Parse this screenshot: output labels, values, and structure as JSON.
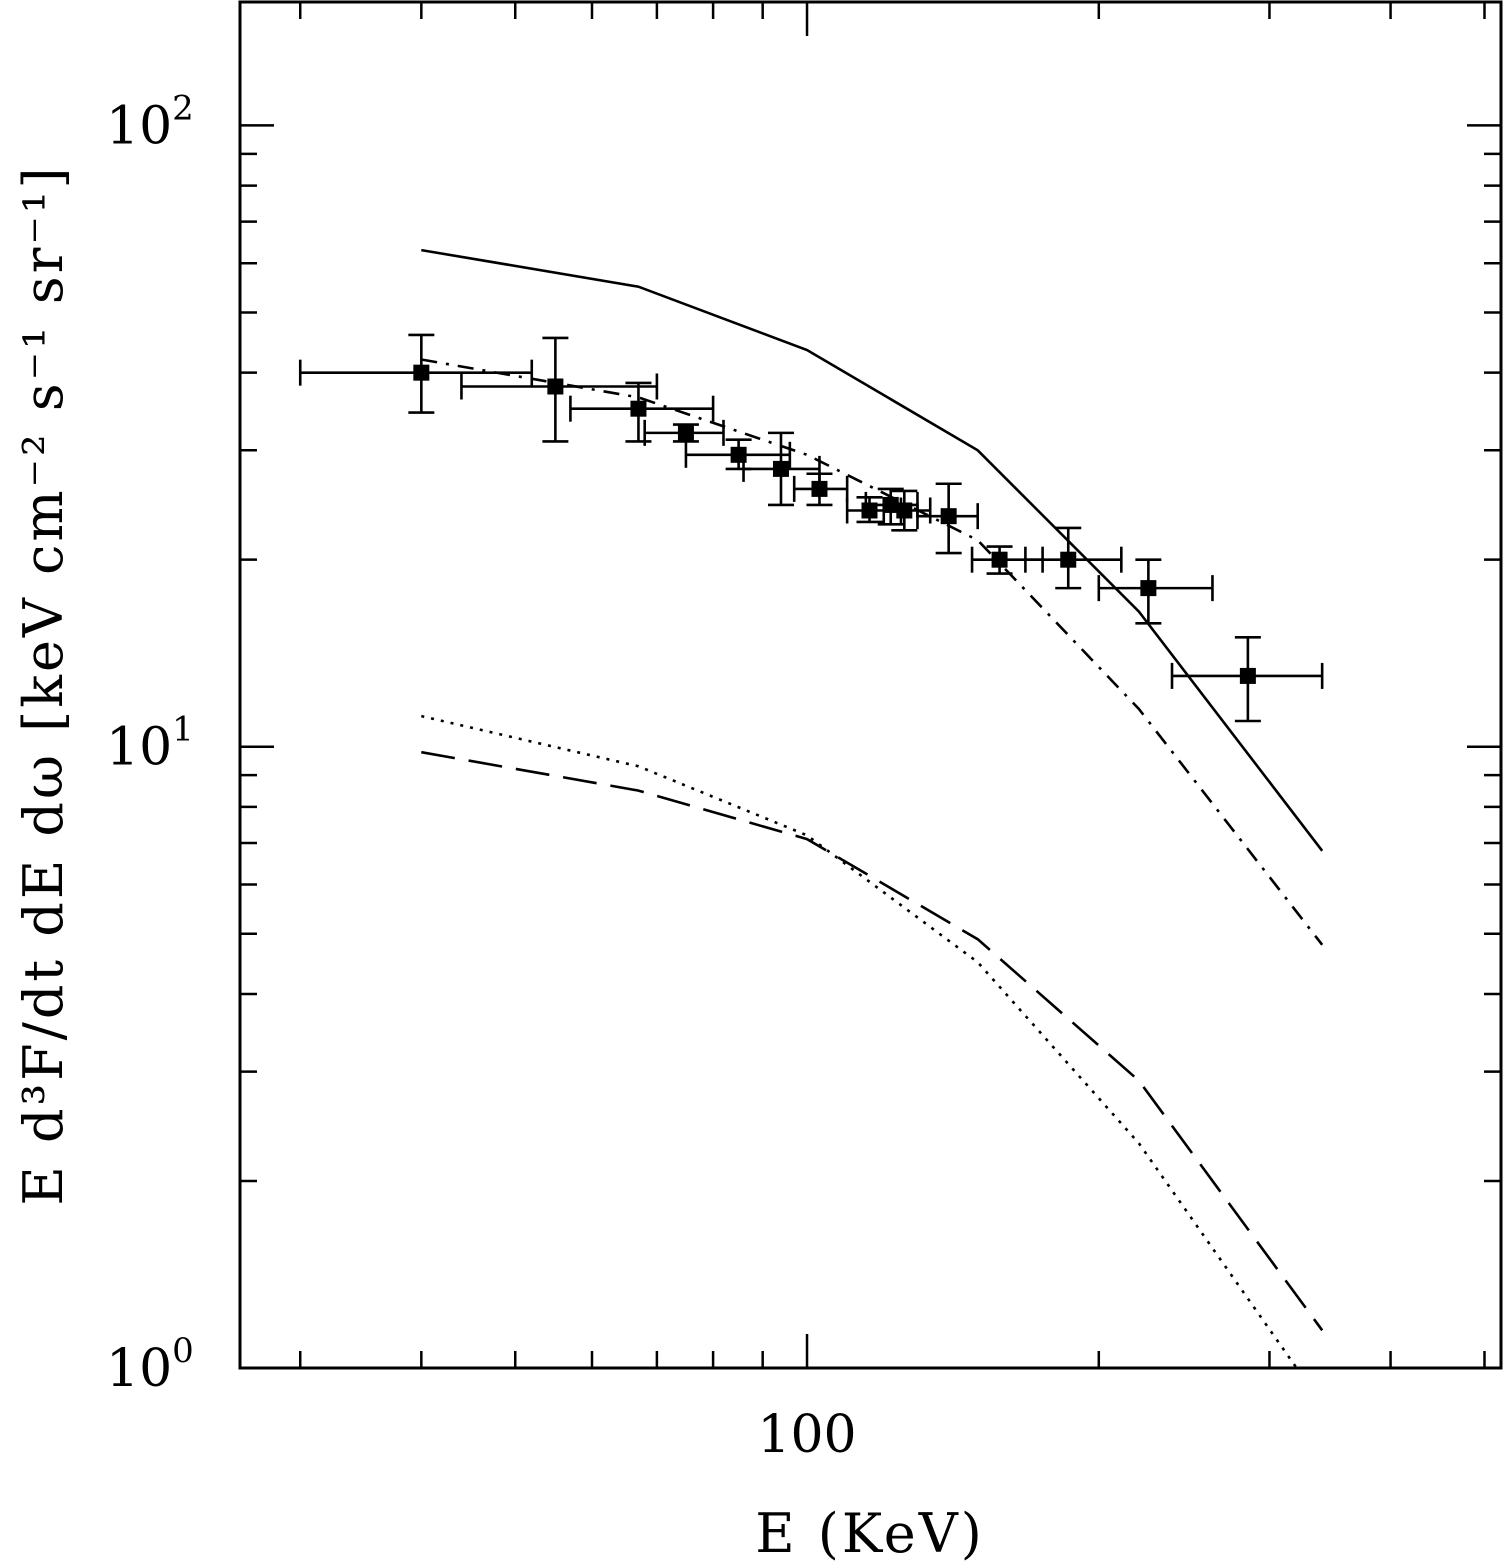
{
  "chart_data": {
    "type": "scatter",
    "title": "",
    "xlabel": "E (KeV)",
    "ylabel": "E d³F/dt dE dω [keV cm⁻² s⁻¹ sr⁻¹]",
    "xscale": "log",
    "yscale": "log",
    "xlim": [
      26,
      520
    ],
    "ylim": [
      1,
      158
    ],
    "x_tick_labels": [
      {
        "value": 100,
        "text": "100"
      }
    ],
    "y_tick_labels": [
      {
        "value": 1,
        "base": "10",
        "exp": "0"
      },
      {
        "value": 10,
        "base": "10",
        "exp": "1"
      },
      {
        "value": 100,
        "base": "10",
        "exp": "2"
      }
    ],
    "grid": false,
    "legend": "none",
    "data_points": [
      {
        "x": 40,
        "y": 40.0,
        "xerr": [
          30,
          52
        ],
        "yerr": [
          34.5,
          46.0
        ]
      },
      {
        "x": 55,
        "y": 38.0,
        "xerr": [
          44,
          70
        ],
        "yerr": [
          31.0,
          45.5
        ]
      },
      {
        "x": 67,
        "y": 35.0,
        "xerr": [
          57,
          80
        ],
        "yerr": [
          31.0,
          38.5
        ]
      },
      {
        "x": 75,
        "y": 32.0,
        "xerr": [
          68,
          82
        ],
        "yerr": [
          31.0,
          33.0
        ]
      },
      {
        "x": 85,
        "y": 29.5,
        "xerr": [
          75,
          96
        ],
        "yerr": [
          28.0,
          31.2
        ]
      },
      {
        "x": 94,
        "y": 28.0,
        "xerr": [
          86,
          103
        ],
        "yerr": [
          24.5,
          32.0
        ]
      },
      {
        "x": 103,
        "y": 26.0,
        "xerr": [
          97,
          110
        ],
        "yerr": [
          24.5,
          27.5
        ]
      },
      {
        "x": 116,
        "y": 24.0,
        "xerr": [
          110,
          125
        ],
        "yerr": [
          23.0,
          25.2
        ]
      },
      {
        "x": 122,
        "y": 24.5,
        "xerr": [
          115,
          130
        ],
        "yerr": [
          22.8,
          26.0
        ]
      },
      {
        "x": 126,
        "y": 24.0,
        "xerr": [
          120,
          134
        ],
        "yerr": [
          22.3,
          25.8
        ]
      },
      {
        "x": 140,
        "y": 23.5,
        "xerr": [
          130,
          150
        ],
        "yerr": [
          20.5,
          26.5
        ]
      },
      {
        "x": 158,
        "y": 20.0,
        "xerr": [
          148,
          175
        ],
        "yerr": [
          19.0,
          21.0
        ]
      },
      {
        "x": 186,
        "y": 20.0,
        "xerr": [
          168,
          211
        ],
        "yerr": [
          18.0,
          22.5
        ]
      },
      {
        "x": 225,
        "y": 18.0,
        "xerr": [
          200,
          262
        ],
        "yerr": [
          15.8,
          20.0
        ]
      },
      {
        "x": 285,
        "y": 13.0,
        "xerr": [
          238,
          340
        ],
        "yerr": [
          11.0,
          15.0
        ]
      }
    ],
    "series": [
      {
        "name": "solid",
        "style": "solid",
        "x": [
          40,
          67,
          100,
          150,
          220,
          340
        ],
        "y": [
          63,
          55,
          43.5,
          30,
          16.5,
          6.8
        ]
      },
      {
        "name": "dash-dot",
        "style": "dashdot",
        "x": [
          40,
          67,
          100,
          150,
          220,
          340
        ],
        "y": [
          42,
          36.5,
          29.5,
          21.5,
          11.5,
          4.8
        ]
      },
      {
        "name": "dotted",
        "style": "dotted",
        "x": [
          40,
          67,
          100,
          150,
          220,
          320
        ],
        "y": [
          11.2,
          9.3,
          7.2,
          4.5,
          2.3,
          1.0
        ]
      },
      {
        "name": "long-dash",
        "style": "longdash",
        "x": [
          40,
          67,
          100,
          150,
          220,
          340
        ],
        "y": [
          9.8,
          8.5,
          7.1,
          4.9,
          2.9,
          1.15
        ]
      }
    ]
  }
}
